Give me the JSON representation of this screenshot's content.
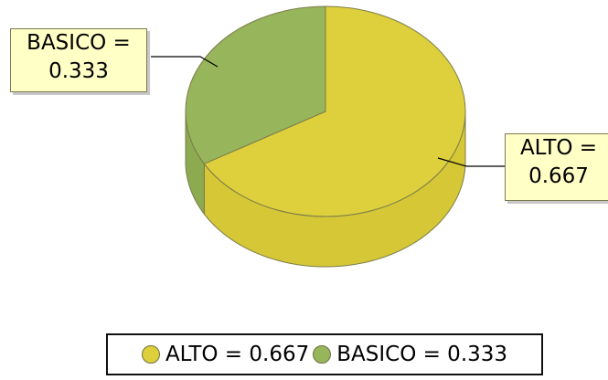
{
  "chart_data": {
    "type": "pie",
    "style": "3d",
    "slices": [
      {
        "label": "ALTO",
        "value": 0.667,
        "color": "#decf3c",
        "side_color": "#d6c737",
        "callout": [
          "ALTO =",
          "0.667"
        ],
        "legend_text": "ALTO = 0.667"
      },
      {
        "label": "BASICO",
        "value": 0.333,
        "color": "#97b55a",
        "side_color": "#8caa50",
        "callout": [
          "BASICO =",
          "0.333"
        ],
        "legend_text": "BASICO = 0.333"
      }
    ],
    "legend_position": "bottom"
  }
}
